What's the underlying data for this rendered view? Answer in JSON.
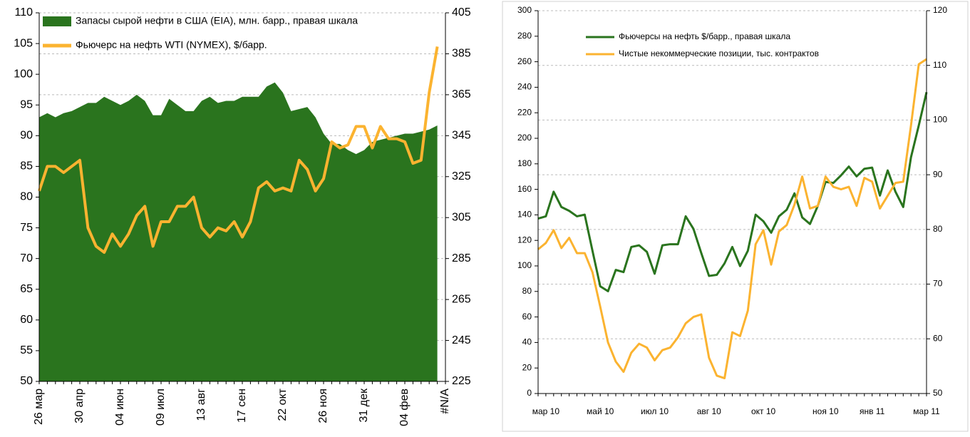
{
  "chart_data": [
    {
      "type": "combo",
      "categories": [
        "26 мар",
        null,
        null,
        null,
        null,
        "30 апр",
        null,
        null,
        null,
        null,
        "04 июн",
        null,
        null,
        null,
        null,
        "09 июл",
        null,
        null,
        null,
        null,
        "13 авг",
        null,
        null,
        null,
        null,
        "17 сен",
        null,
        null,
        null,
        null,
        "22 окт",
        null,
        null,
        null,
        null,
        "26 ноя",
        null,
        null,
        null,
        null,
        "31 дек",
        null,
        null,
        null,
        null,
        "04 фев",
        null,
        null,
        null,
        null,
        "#N/A"
      ],
      "series": [
        {
          "name": "Запасы сырой нефти в США (EIA), млн. барр., правая шкала",
          "type": "area",
          "axis": "y2",
          "color": "#2a741e",
          "values": [
            354,
            356,
            354,
            356,
            357,
            359,
            361,
            361,
            364,
            362,
            360,
            362,
            365,
            362,
            355,
            355,
            363,
            360,
            357,
            357,
            362,
            364,
            361,
            362,
            362,
            364,
            364,
            364,
            369,
            371,
            366,
            357,
            358,
            359,
            354,
            346,
            341,
            341,
            338,
            336,
            338,
            342,
            343,
            344,
            345,
            346,
            346,
            347,
            348,
            350,
            null
          ]
        },
        {
          "name": "Фьючерс на нефть WTI (NYMEX), $/барр.",
          "type": "line",
          "color": "#fbb330",
          "values": [
            81,
            85,
            85,
            84,
            85,
            86,
            75,
            72,
            71,
            74,
            72,
            74,
            77,
            78.5,
            72,
            76,
            76,
            78.5,
            78.5,
            80,
            75,
            73.5,
            75,
            74.5,
            76,
            73.5,
            76,
            81.5,
            82.5,
            81,
            81.5,
            81,
            86,
            84.5,
            81,
            83,
            89,
            88,
            88.5,
            91.5,
            91.5,
            88,
            91.5,
            89.5,
            89.5,
            89,
            85.5,
            86,
            97,
            104.5,
            null
          ]
        }
      ],
      "ylim": [
        50,
        110
      ],
      "yticks": [
        50,
        55,
        60,
        65,
        70,
        75,
        80,
        85,
        90,
        95,
        100,
        105,
        110
      ],
      "y2lim": [
        225,
        405
      ],
      "y2ticks": [
        225,
        245,
        265,
        285,
        305,
        325,
        345,
        365,
        385,
        405
      ],
      "grid": true,
      "legend": "top-left"
    },
    {
      "type": "line",
      "categories": [
        null,
        "мар 10",
        null,
        null,
        null,
        null,
        null,
        null,
        "май 10",
        null,
        null,
        null,
        null,
        null,
        null,
        "июл 10",
        null,
        null,
        null,
        null,
        null,
        null,
        "авг 10",
        null,
        null,
        null,
        null,
        null,
        null,
        "окт 10",
        null,
        null,
        null,
        null,
        null,
        null,
        null,
        "ноя 10",
        null,
        null,
        null,
        null,
        null,
        "янв 11",
        null,
        null,
        null,
        null,
        null,
        null,
        "мар 11"
      ],
      "series": [
        {
          "name": "Фьючерсы на нефть $/барр., правая шкала",
          "type": "line",
          "axis": "y2",
          "color": "#2a741e",
          "values": [
            82.0,
            82.4,
            86.9,
            84.1,
            83.4,
            82.4,
            82.7,
            76.1,
            69.6,
            68.7,
            72.6,
            72.2,
            76.8,
            77.1,
            75.9,
            71.9,
            77.1,
            77.3,
            77.3,
            82.4,
            80.1,
            75.7,
            71.5,
            71.7,
            73.8,
            76.8,
            73.3,
            76.1,
            82.7,
            81.5,
            79.4,
            82.4,
            83.6,
            86.6,
            82.2,
            81.0,
            84.3,
            88.7,
            88.5,
            89.9,
            91.5,
            89.7,
            91.1,
            91.3,
            86.2,
            90.8,
            86.9,
            84.1,
            93.2,
            99.0,
            105.1
          ]
        },
        {
          "name": "Чистые некоммерческие позиции, тыс. контрактов",
          "type": "line",
          "color": "#fbb330",
          "values": [
            113,
            118,
            128,
            114,
            122,
            110,
            110,
            95,
            68,
            40,
            25,
            17,
            32,
            39,
            36,
            26,
            34,
            36,
            44,
            55,
            60,
            62,
            28,
            14,
            12,
            48,
            45,
            65,
            117,
            128,
            101,
            127,
            132,
            148,
            170,
            145,
            147,
            170,
            162,
            160,
            162,
            147,
            169,
            166,
            145,
            155,
            165,
            166,
            210,
            258,
            262
          ]
        }
      ],
      "ylim": [
        0,
        300
      ],
      "yticks": [
        0,
        20,
        40,
        60,
        80,
        100,
        120,
        140,
        160,
        180,
        200,
        220,
        240,
        260,
        280,
        300
      ],
      "y2lim": [
        50,
        120
      ],
      "y2ticks": [
        50,
        60,
        70,
        80,
        90,
        100,
        110,
        120
      ],
      "grid": true,
      "legend": "top-center"
    }
  ]
}
